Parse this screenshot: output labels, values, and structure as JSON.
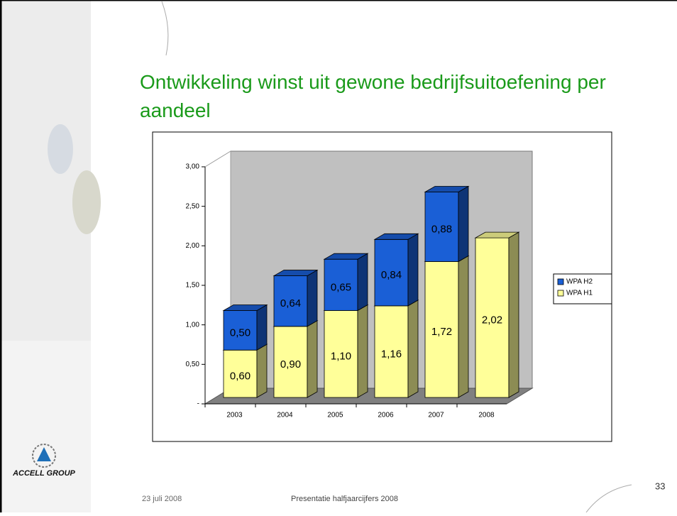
{
  "chart_data": {
    "type": "bar3d_stacked",
    "title": "Ontwikkeling winst uit gewone bedrijfsuitoefening per aandeel",
    "categories": [
      "2003",
      "2004",
      "2005",
      "2006",
      "2007",
      "2008"
    ],
    "series": [
      {
        "name": "WPA H1",
        "color": "#ffff99",
        "values": [
          0.6,
          0.9,
          1.1,
          1.16,
          1.72,
          2.02
        ],
        "value_labels": [
          "0,60",
          "0,90",
          "1,10",
          "1,16",
          "1,72",
          "2,02"
        ]
      },
      {
        "name": "WPA H2",
        "color": "#1a5fd6",
        "values": [
          0.5,
          0.64,
          0.65,
          0.84,
          0.88,
          null
        ],
        "value_labels": [
          "0,50",
          "0,64",
          "0,65",
          "0,84",
          "0,88",
          null
        ]
      }
    ],
    "ylim": [
      0,
      3
    ],
    "yticks": [
      {
        "value": 0,
        "label": "-"
      },
      {
        "value": 0.5,
        "label": "0,50"
      },
      {
        "value": 1,
        "label": "1,00"
      },
      {
        "value": 1.5,
        "label": "1,50"
      },
      {
        "value": 2,
        "label": "2,00"
      },
      {
        "value": 2.5,
        "label": "2,50"
      },
      {
        "value": 3,
        "label": "3,00"
      }
    ],
    "legend": "right"
  },
  "footer": {
    "date": "23 juli 2008",
    "presentation": "Presentatie halfjaarcijfers 2008",
    "page": "33"
  },
  "logo": {
    "name": "ACCELL GROUP"
  }
}
